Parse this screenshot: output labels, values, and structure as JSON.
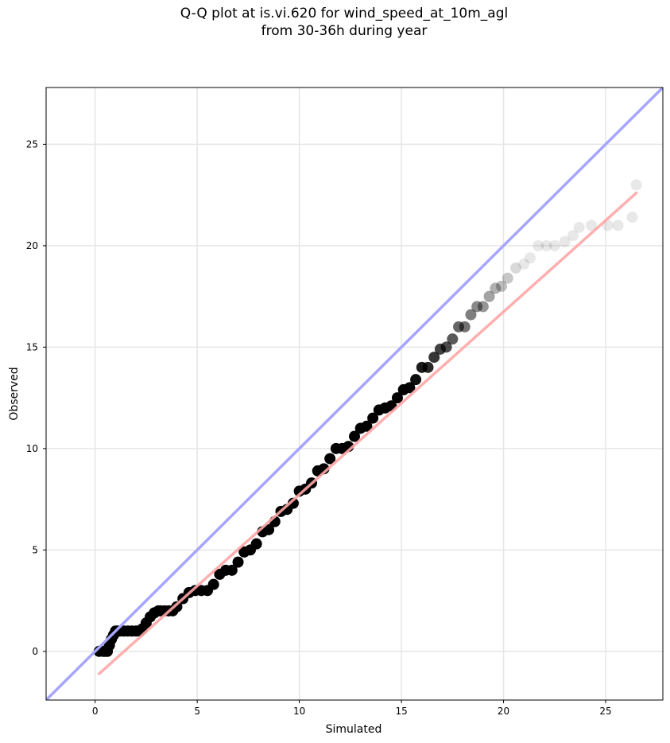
{
  "chart_data": {
    "type": "scatter",
    "title": "Q-Q plot at is.vi.620 for wind_speed_at_10m_agl",
    "subtitle": "from 30-36h during year",
    "xlabel": "Simulated",
    "ylabel": "Observed",
    "xlim": [
      -2.4,
      27.8
    ],
    "ylim": [
      -2.4,
      27.8
    ],
    "xticks": [
      0,
      5,
      10,
      15,
      20,
      25
    ],
    "yticks": [
      0,
      5,
      10,
      15,
      20,
      25
    ],
    "grid": true,
    "colors": {
      "points": "#000000",
      "identity_line": "#a6a6ff",
      "fit_line": "#ffa6a6"
    },
    "series": [
      {
        "type": "scatter",
        "x": [
          0.2,
          0.4,
          0.5,
          0.6,
          0.7,
          0.8,
          0.9,
          1.0,
          1.1,
          1.2,
          1.4,
          1.6,
          1.8,
          2.0,
          2.2,
          2.3,
          2.5,
          2.7,
          2.9,
          3.1,
          3.2,
          3.4,
          3.6,
          3.8,
          4.0,
          4.3,
          4.6,
          4.9,
          5.2,
          5.5,
          5.8,
          6.1,
          6.4,
          6.7,
          7.0,
          7.3,
          7.6,
          7.9,
          8.2,
          8.5,
          8.8,
          9.1,
          9.4,
          9.7,
          10.0,
          10.3,
          10.6,
          10.9,
          11.2,
          11.5,
          11.8,
          12.1,
          12.4,
          12.7,
          13.0,
          13.3,
          13.6,
          13.9,
          14.2,
          14.5,
          14.8,
          15.1,
          15.4,
          15.7,
          16.0,
          16.3,
          16.6,
          16.9,
          17.2,
          17.5,
          17.8,
          18.1,
          18.4,
          18.7,
          19.0,
          19.3,
          19.6,
          19.9,
          20.2,
          20.6,
          21.0,
          21.3,
          21.7,
          22.1,
          22.5,
          23.0,
          23.4,
          23.7,
          24.3,
          25.1,
          25.6,
          26.3,
          26.5
        ],
        "y": [
          0,
          0,
          0,
          0,
          0.3,
          0.6,
          0.8,
          1,
          1,
          1,
          1,
          1,
          1,
          1,
          1,
          1.1,
          1.4,
          1.7,
          1.9,
          2,
          2,
          2,
          2,
          2,
          2.2,
          2.6,
          2.9,
          3,
          3,
          3,
          3.3,
          3.8,
          4,
          4,
          4.4,
          4.9,
          5,
          5.3,
          5.9,
          6,
          6.4,
          6.9,
          7,
          7.3,
          7.9,
          8,
          8.3,
          8.9,
          9,
          9.5,
          10,
          10,
          10.1,
          10.6,
          11,
          11.1,
          11.5,
          11.9,
          12,
          12.1,
          12.5,
          12.9,
          13,
          13.4,
          14,
          14,
          14.5,
          14.9,
          15,
          15.4,
          16,
          16,
          16.6,
          17,
          17,
          17.5,
          17.9,
          18,
          18.4,
          18.9,
          19.1,
          19.4,
          20,
          20,
          20,
          20.2,
          20.5,
          20.9,
          21,
          21,
          21,
          21.4,
          23
        ]
      },
      {
        "type": "line",
        "x": [
          -2.4,
          27.8
        ],
        "y": [
          -2.4,
          27.8
        ]
      },
      {
        "type": "line",
        "x": [
          0.2,
          26.5
        ],
        "y": [
          -1.1,
          22.6
        ]
      }
    ]
  }
}
